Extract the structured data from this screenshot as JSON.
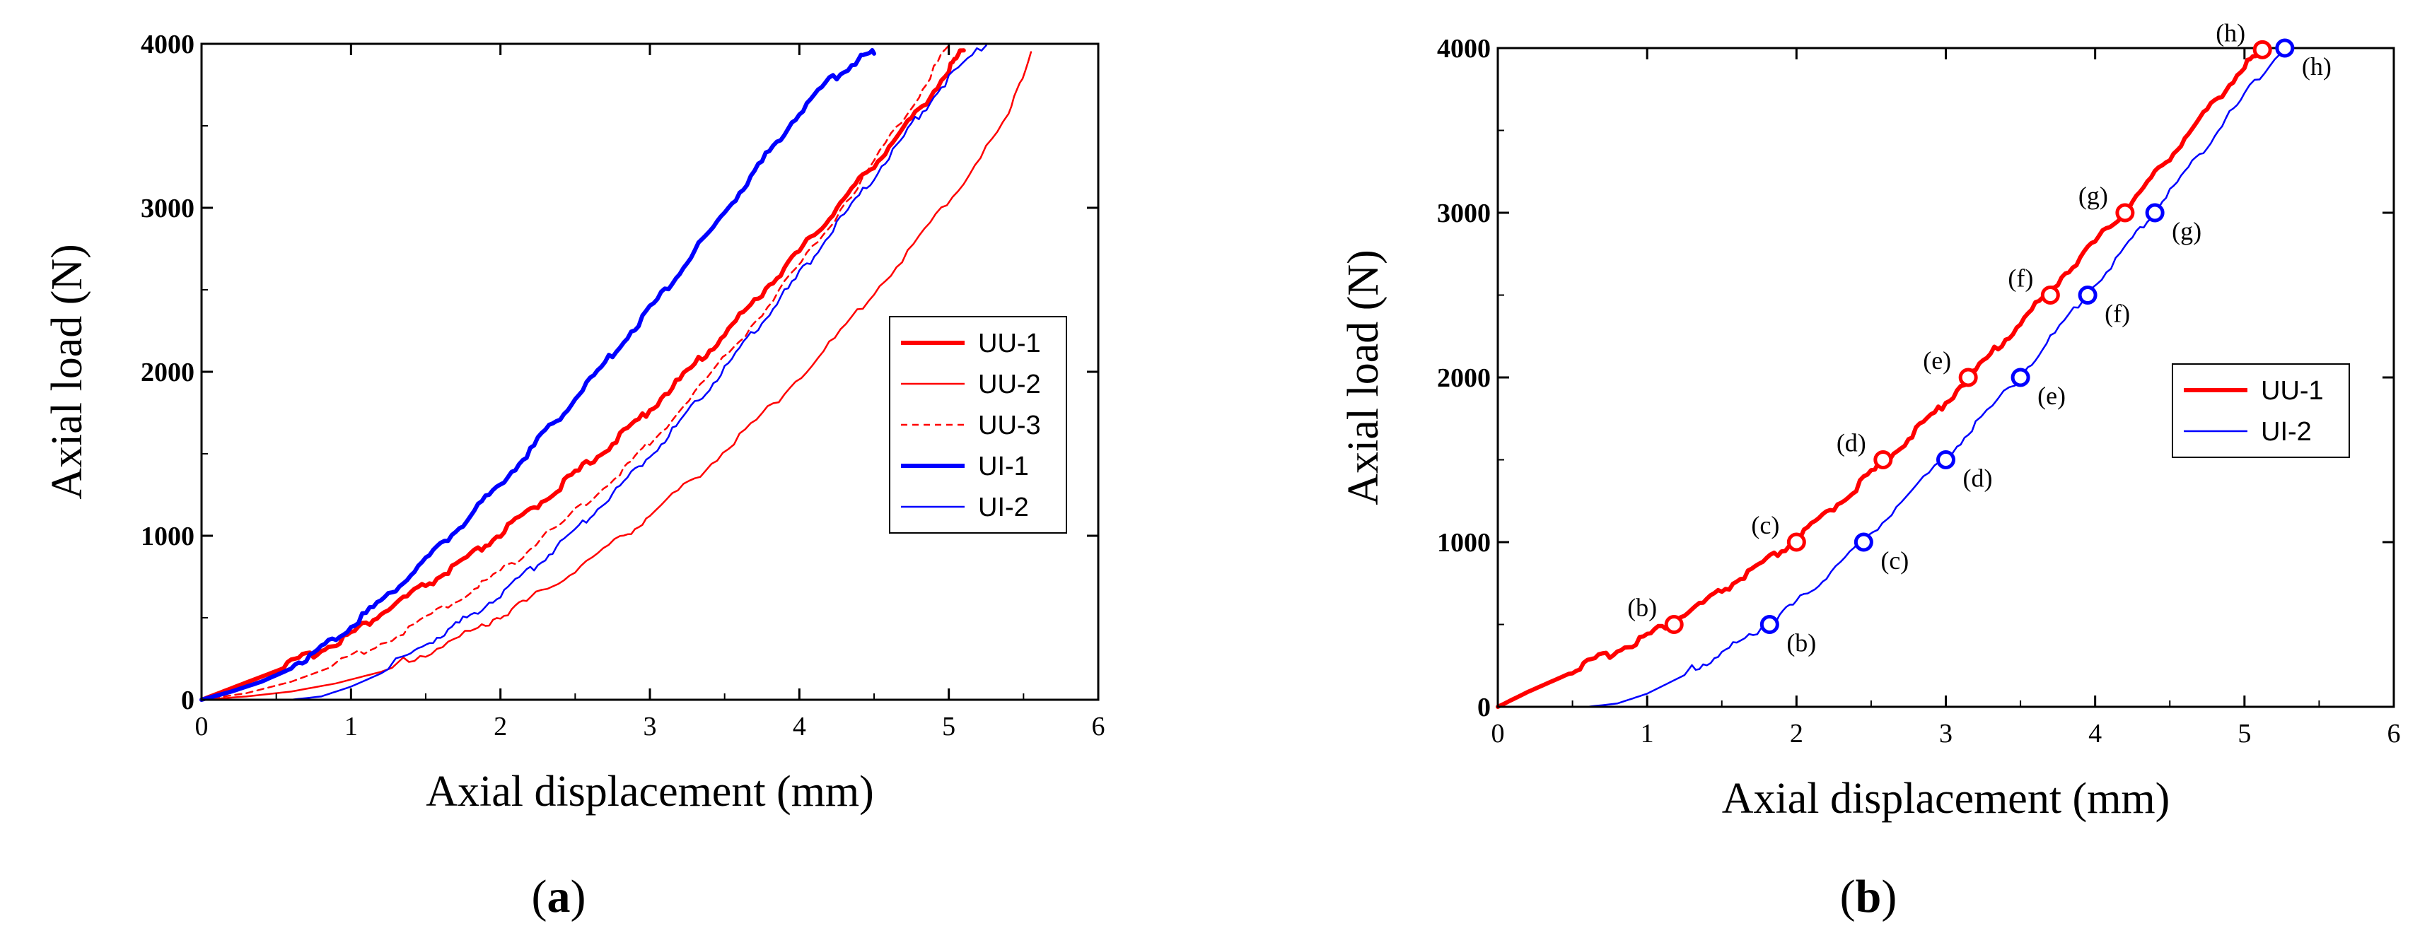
{
  "chart_data": [
    {
      "type": "line",
      "panel_label": "a",
      "title": "",
      "xlabel": "Axial displacement (mm)",
      "ylabel": "Axial load (N)",
      "xlim": [
        0,
        6
      ],
      "ylim": [
        0,
        4000
      ],
      "x_ticks": [
        0,
        1,
        2,
        3,
        4,
        5,
        6
      ],
      "y_ticks": [
        0,
        1000,
        2000,
        3000,
        4000
      ],
      "grid": false,
      "legend_position": "center-right",
      "series": [
        {
          "name": "UU-1",
          "color": "#ff0000",
          "style": "thick",
          "x": [
            0,
            0.2,
            0.4,
            0.6,
            0.8,
            1.0,
            1.2,
            1.4,
            1.6,
            1.8,
            2.0,
            2.2,
            2.4,
            2.6,
            2.8,
            3.0,
            3.2,
            3.4,
            3.6,
            3.8,
            4.0,
            4.2,
            4.4,
            4.6,
            4.8,
            5.0,
            5.1
          ],
          "y": [
            0,
            70,
            140,
            210,
            290,
            390,
            510,
            630,
            740,
            860,
            1000,
            1140,
            1290,
            1440,
            1590,
            1760,
            1940,
            2120,
            2320,
            2520,
            2720,
            2930,
            3150,
            3360,
            3580,
            3830,
            3960
          ]
        },
        {
          "name": "UU-2",
          "color": "#ff0000",
          "style": "thin",
          "x": [
            0,
            0.3,
            0.6,
            0.9,
            1.2,
            1.5,
            1.8,
            2.0,
            2.2,
            2.5,
            2.8,
            3.0,
            3.3,
            3.6,
            3.9,
            4.2,
            4.5,
            4.8,
            5.1,
            5.4,
            5.55
          ],
          "y": [
            0,
            20,
            50,
            100,
            170,
            270,
            400,
            500,
            600,
            780,
            970,
            1110,
            1340,
            1590,
            1860,
            2150,
            2470,
            2800,
            3150,
            3550,
            3950
          ]
        },
        {
          "name": "UU-3",
          "color": "#ff0000",
          "style": "dashed",
          "x": [
            0,
            0.3,
            0.6,
            0.9,
            1.2,
            1.5,
            1.8,
            2.0,
            2.2,
            2.5,
            2.8,
            3.0,
            3.3,
            3.6,
            3.9,
            4.2,
            4.5,
            4.8,
            5.0
          ],
          "y": [
            0,
            40,
            110,
            210,
            330,
            480,
            650,
            770,
            910,
            1130,
            1370,
            1550,
            1860,
            2180,
            2520,
            2880,
            3270,
            3680,
            3990
          ]
        },
        {
          "name": "UI-1",
          "color": "#0000ff",
          "style": "thick",
          "x": [
            0,
            0.2,
            0.4,
            0.6,
            0.8,
            1.0,
            1.2,
            1.4,
            1.6,
            1.8,
            2.0,
            2.2,
            2.4,
            2.6,
            2.8,
            3.0,
            3.2,
            3.4,
            3.6,
            3.8,
            4.0,
            4.2,
            4.4,
            4.5
          ],
          "y": [
            0,
            50,
            110,
            190,
            300,
            440,
            590,
            750,
            930,
            1110,
            1310,
            1510,
            1720,
            1930,
            2150,
            2370,
            2600,
            2840,
            3080,
            3330,
            3570,
            3760,
            3900,
            3940
          ]
        },
        {
          "name": "UI-2",
          "color": "#0000ff",
          "style": "thin",
          "x": [
            0,
            0.6,
            0.8,
            1.0,
            1.2,
            1.4,
            1.6,
            1.8,
            2.0,
            2.2,
            2.4,
            2.6,
            2.8,
            3.0,
            3.2,
            3.4,
            3.6,
            3.8,
            4.0,
            4.2,
            4.4,
            4.6,
            4.8,
            5.0,
            5.25
          ],
          "y": [
            0,
            0,
            20,
            80,
            160,
            270,
            380,
            500,
            630,
            780,
            940,
            1110,
            1290,
            1480,
            1680,
            1900,
            2120,
            2350,
            2580,
            2820,
            3060,
            3300,
            3550,
            3780,
            3990
          ]
        }
      ]
    },
    {
      "type": "line",
      "panel_label": "b",
      "title": "",
      "xlabel": "Axial displacement (mm)",
      "ylabel": "Axial load (N)",
      "xlim": [
        0,
        6
      ],
      "ylim": [
        0,
        4000
      ],
      "x_ticks": [
        0,
        1,
        2,
        3,
        4,
        5,
        6
      ],
      "y_ticks": [
        0,
        1000,
        2000,
        3000,
        4000
      ],
      "grid": false,
      "legend_position": "center-right",
      "series": [
        {
          "name": "UU-1",
          "color": "#ff0000",
          "style": "thick",
          "x": [
            0,
            0.2,
            0.4,
            0.6,
            0.8,
            1.0,
            1.2,
            1.4,
            1.6,
            1.8,
            2.0,
            2.2,
            2.4,
            2.6,
            2.8,
            3.0,
            3.2,
            3.4,
            3.6,
            3.8,
            4.0,
            4.2,
            4.4,
            4.6,
            4.8,
            5.0,
            5.15
          ],
          "y": [
            0,
            90,
            170,
            250,
            330,
            420,
            520,
            630,
            750,
            870,
            1000,
            1160,
            1320,
            1490,
            1660,
            1840,
            2030,
            2220,
            2420,
            2620,
            2810,
            3000,
            3220,
            3440,
            3660,
            3880,
            3990
          ]
        },
        {
          "name": "UI-2",
          "color": "#0000ff",
          "style": "thin",
          "x": [
            0,
            0.6,
            0.8,
            1.0,
            1.2,
            1.4,
            1.6,
            1.82,
            2.0,
            2.2,
            2.45,
            2.7,
            3.0,
            3.2,
            3.5,
            3.7,
            3.95,
            4.2,
            4.4,
            4.6,
            4.8,
            5.0,
            5.27
          ],
          "y": [
            0,
            0,
            20,
            80,
            170,
            260,
            370,
            500,
            620,
            780,
            1000,
            1230,
            1500,
            1700,
            2000,
            2220,
            2500,
            2770,
            3000,
            3230,
            3460,
            3700,
            4000
          ]
        }
      ],
      "markers": [
        {
          "series": "UU-1",
          "label": "(b)",
          "x": 1.18,
          "y": 500
        },
        {
          "series": "UU-1",
          "label": "(c)",
          "x": 2.0,
          "y": 1000
        },
        {
          "series": "UU-1",
          "label": "(d)",
          "x": 2.58,
          "y": 1500
        },
        {
          "series": "UU-1",
          "label": "(e)",
          "x": 3.15,
          "y": 2000
        },
        {
          "series": "UU-1",
          "label": "(f)",
          "x": 3.7,
          "y": 2500
        },
        {
          "series": "UU-1",
          "label": "(g)",
          "x": 4.2,
          "y": 3000
        },
        {
          "series": "UU-1",
          "label": "(h)",
          "x": 5.12,
          "y": 3990
        },
        {
          "series": "UI-2",
          "label": "(b)",
          "x": 1.82,
          "y": 500
        },
        {
          "series": "UI-2",
          "label": "(c)",
          "x": 2.45,
          "y": 1000
        },
        {
          "series": "UI-2",
          "label": "(d)",
          "x": 3.0,
          "y": 1500
        },
        {
          "series": "UI-2",
          "label": "(e)",
          "x": 3.5,
          "y": 2000
        },
        {
          "series": "UI-2",
          "label": "(f)",
          "x": 3.95,
          "y": 2500
        },
        {
          "series": "UI-2",
          "label": "(g)",
          "x": 4.4,
          "y": 3000
        },
        {
          "series": "UI-2",
          "label": "(h)",
          "x": 5.27,
          "y": 4000
        }
      ]
    }
  ]
}
